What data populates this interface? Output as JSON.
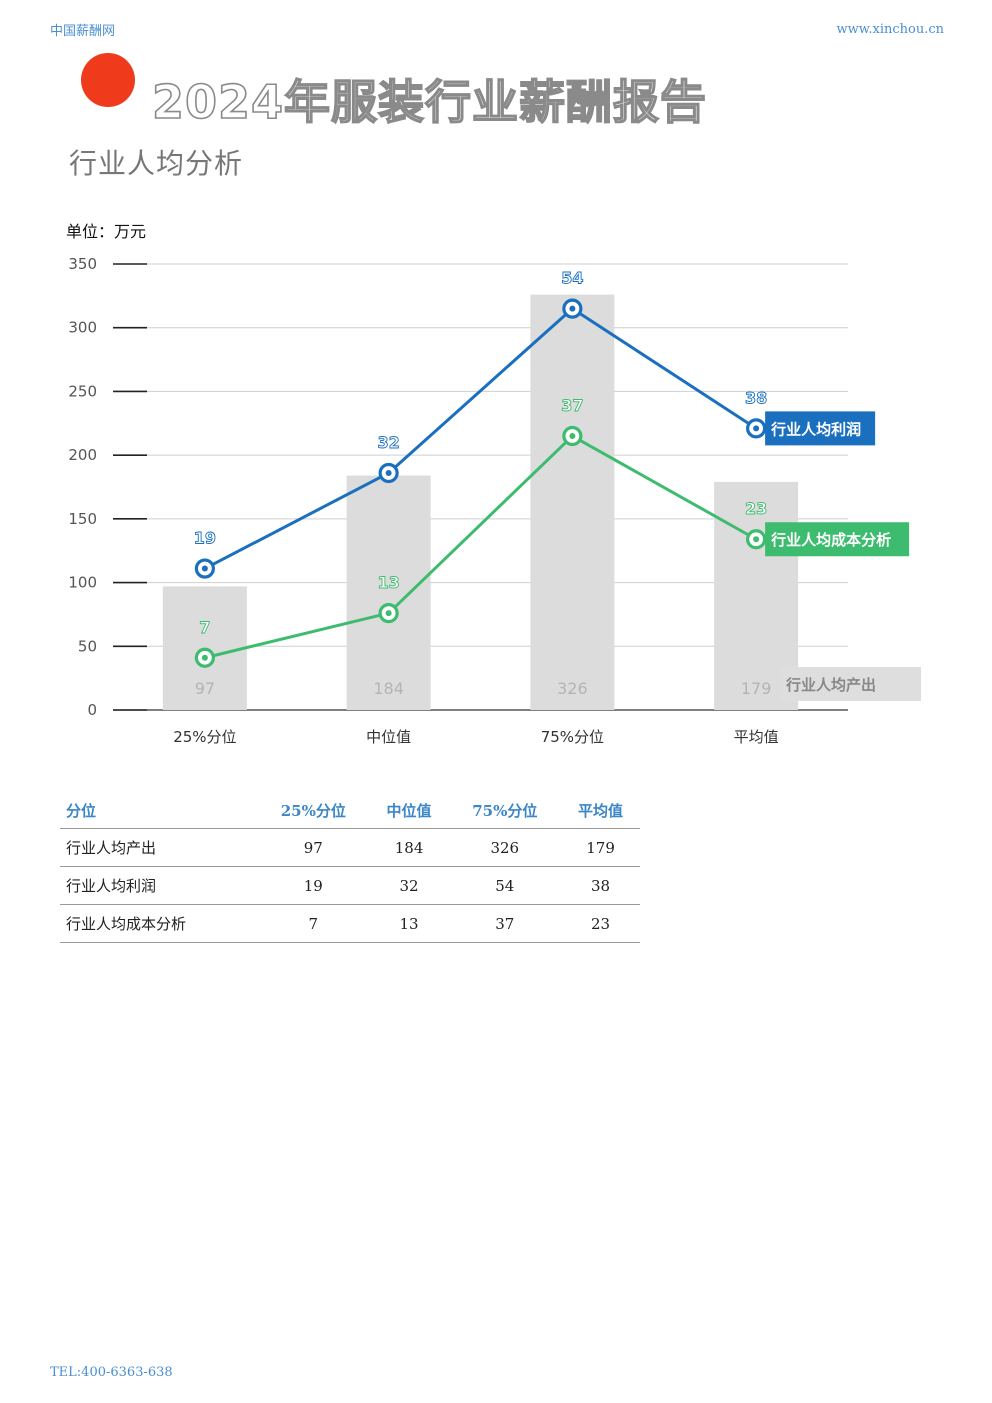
{
  "header": {
    "site": "中国薪酬网",
    "url": "www.xinchou.cn"
  },
  "title": "2024年服装行业薪酬报告",
  "subtitle": "行业人均分析",
  "unit_label": "单位：万元",
  "colors": {
    "bar": "#dcdcdc",
    "profit": "#1a6fbf",
    "cost": "#3dbb6e",
    "accent": "#f03a1c",
    "header_blue": "#4a8fd0"
  },
  "chart_data": {
    "type": "bar+line",
    "categories": [
      "25%分位",
      "中位值",
      "75%分位",
      "平均值"
    ],
    "ylim": [
      0,
      350
    ],
    "yticks": [
      0,
      50,
      100,
      150,
      200,
      250,
      300,
      350
    ],
    "grid": true,
    "series": [
      {
        "name": "行业人均产出",
        "type": "bar",
        "values": [
          97,
          184,
          326,
          179
        ],
        "label_values": [
          "97",
          "184",
          "326",
          "179"
        ]
      },
      {
        "name": "行业人均利润",
        "type": "line",
        "plot_values": [
          111,
          186,
          315,
          221
        ],
        "label_values": [
          "19",
          "32",
          "54",
          "38"
        ]
      },
      {
        "name": "行业人均成本分析",
        "type": "line",
        "plot_values": [
          41,
          76,
          215,
          134
        ],
        "label_values": [
          "7",
          "13",
          "37",
          "23"
        ]
      }
    ]
  },
  "table": {
    "headers": [
      "分位",
      "25%分位",
      "中位值",
      "75%分位",
      "平均值"
    ],
    "rows": [
      [
        "行业人均产出",
        "97",
        "184",
        "326",
        "179"
      ],
      [
        "行业人均利润",
        "19",
        "32",
        "54",
        "38"
      ],
      [
        "行业人均成本分析",
        "7",
        "13",
        "37",
        "23"
      ]
    ]
  },
  "footer": {
    "tel": "TEL:400-6363-638"
  }
}
